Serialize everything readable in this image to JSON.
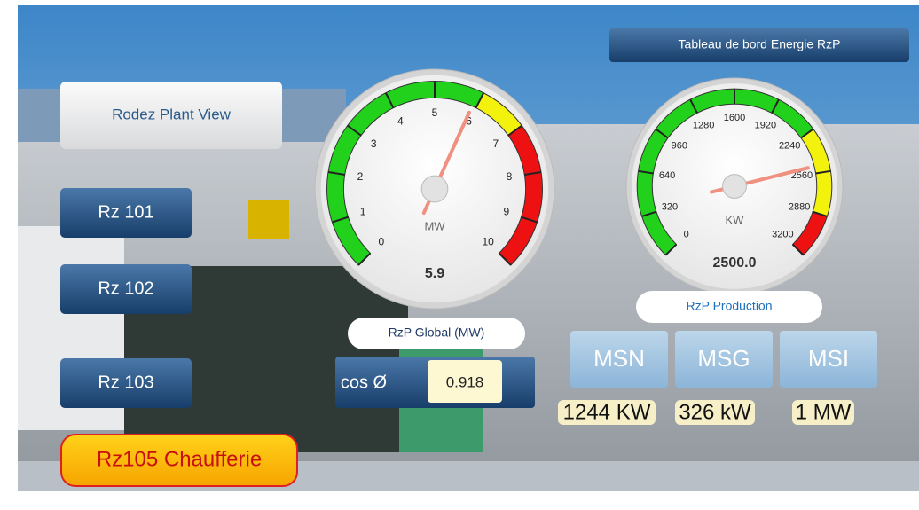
{
  "header": {
    "title": "Tableau de bord Energie RzP"
  },
  "buttons": [
    "Rodez Plant View",
    "Rz 101",
    "Rz 102",
    "Rz 103",
    "Rz105 Chaufferie"
  ],
  "gauges": [
    {
      "unit": "MW",
      "value": 5.9,
      "caption": "RzP Global (MW)",
      "range": [
        0,
        10
      ],
      "ticks": [
        0,
        1,
        2,
        3,
        4,
        5,
        6,
        7,
        8,
        9,
        10
      ],
      "bands": [
        {
          "from": 0,
          "to": 6,
          "color": "#22d11b"
        },
        {
          "from": 6,
          "to": 7,
          "color": "#f2f20d"
        },
        {
          "from": 7,
          "to": 10,
          "color": "#ee1111"
        }
      ]
    },
    {
      "unit": "KW",
      "value": 2500,
      "value_label": "2500.0",
      "caption": "RzP Production",
      "range": [
        0,
        3200
      ],
      "ticks": [
        0,
        320,
        640,
        960,
        1280,
        1600,
        1920,
        2240,
        2560,
        2880,
        3200
      ],
      "bands": [
        {
          "from": 0,
          "to": 2240,
          "color": "#22d11b"
        },
        {
          "from": 2240,
          "to": 2880,
          "color": "#f2f20d"
        },
        {
          "from": 2880,
          "to": 3200,
          "color": "#ee1111"
        }
      ]
    }
  ],
  "cos_phi": {
    "label": "cos Ø",
    "value": "0.918"
  },
  "meters": [
    {
      "name": "MSN",
      "reading": "1244 KW"
    },
    {
      "name": "MSG",
      "reading": "326 kW"
    },
    {
      "name": "MSI",
      "reading": "1 MW"
    }
  ]
}
